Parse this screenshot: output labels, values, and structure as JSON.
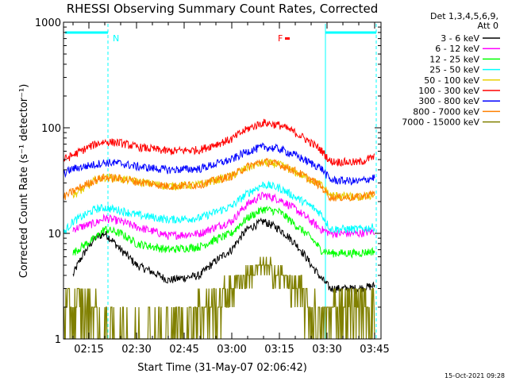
{
  "chart_data": {
    "type": "line",
    "title": "RHESSI Observing Summary Count Rates, Corrected",
    "xlabel": "Start Time (31-May-07 02:06:42)",
    "ylabel": "Corrected Count Rate (s⁻¹ detector⁻¹)",
    "yscale": "log",
    "ylim": [
      1,
      1000
    ],
    "xlim_minutes": [
      7,
      107
    ],
    "grid": false,
    "legend_placement": "right",
    "legend_header": [
      "Det 1,3,4,5,6,9,",
      "Att 0"
    ],
    "x_ticks": [
      "02:15",
      "02:30",
      "02:45",
      "03:00",
      "03:15",
      "03:30",
      "03:45"
    ],
    "x_tick_minutes": [
      15,
      30,
      45,
      60,
      75,
      90,
      105
    ],
    "y_ticks": [
      "1",
      "10",
      "100",
      "1000"
    ],
    "y_tick_values": [
      1,
      10,
      100,
      1000
    ],
    "annotations": [
      {
        "text": "N",
        "color": "#00ffff",
        "minute": 21
      },
      {
        "text": "F",
        "color": "#ff0000",
        "minute": 78
      }
    ],
    "footer": "15-Oct-2021 09:28",
    "series": [
      {
        "name": "3 - 6 keV",
        "color": "#000000",
        "x": [
          10,
          17,
          20,
          25,
          30,
          40,
          50,
          60,
          65,
          70,
          75,
          80,
          85,
          88,
          91,
          100,
          105
        ],
        "y": [
          4.0,
          9,
          10,
          7,
          5,
          3.6,
          4.0,
          7,
          11,
          13,
          11,
          8,
          5,
          3.8,
          3.0,
          3.0,
          3.2
        ]
      },
      {
        "name": "6 - 12 keV",
        "color": "#ff00ff",
        "x": [
          10,
          17,
          20,
          25,
          30,
          40,
          50,
          60,
          65,
          70,
          75,
          80,
          85,
          88,
          91,
          100,
          105
        ],
        "y": [
          11,
          12.5,
          14,
          13,
          11.5,
          9.5,
          10,
          13,
          19,
          23,
          21,
          17,
          13,
          11,
          10,
          10,
          10.5
        ]
      },
      {
        "name": "12 - 25 keV",
        "color": "#00ff00",
        "x": [
          10,
          17,
          20,
          25,
          30,
          40,
          50,
          60,
          65,
          70,
          75,
          80,
          85,
          88,
          91,
          100,
          105
        ],
        "y": [
          6.5,
          9,
          11,
          10,
          8,
          7,
          7.5,
          10,
          14,
          17,
          16,
          12,
          9,
          7,
          6.5,
          6.5,
          6.8
        ]
      },
      {
        "name": "25 - 50 keV",
        "color": "#00ffff",
        "x": [
          7,
          10,
          14,
          17,
          20,
          25,
          30,
          40,
          50,
          60,
          65,
          70,
          75,
          80,
          85,
          88,
          91,
          100,
          105
        ],
        "y": [
          10,
          13,
          15,
          17,
          17.5,
          16.5,
          15,
          13.5,
          14,
          18,
          24,
          29,
          27,
          22,
          18,
          15.5,
          11,
          11,
          11.5
        ]
      },
      {
        "name": "50 - 100 keV",
        "color": "#e8d000",
        "x": [
          10,
          14,
          17,
          20,
          25,
          30,
          40,
          50,
          60,
          65,
          70,
          75,
          80,
          85,
          88,
          91,
          100,
          105
        ],
        "y": [
          23,
          27,
          32,
          34,
          33,
          31,
          28,
          29,
          35,
          42,
          47,
          45,
          38,
          32,
          29,
          23,
          22,
          23
        ]
      },
      {
        "name": "100 - 300 keV",
        "color": "#ff0000",
        "x": [
          7,
          10,
          17,
          20,
          25,
          30,
          40,
          50,
          60,
          65,
          70,
          75,
          80,
          85,
          88,
          91,
          100,
          105
        ],
        "y": [
          50,
          55,
          70,
          74,
          72,
          66,
          60,
          62,
          78,
          98,
          112,
          106,
          90,
          72,
          62,
          48,
          47,
          53
        ]
      },
      {
        "name": "300 - 800 keV",
        "color": "#0000ff",
        "x": [
          7,
          10,
          17,
          20,
          25,
          30,
          40,
          50,
          60,
          65,
          70,
          75,
          80,
          85,
          88,
          91,
          100,
          105
        ],
        "y": [
          37,
          41,
          45,
          47,
          46,
          43,
          40,
          41,
          50,
          60,
          66,
          63,
          55,
          46,
          42,
          32,
          31,
          34
        ]
      },
      {
        "name": "800 - 7000 keV",
        "color": "#ff8000",
        "x": [
          7,
          10,
          17,
          20,
          25,
          30,
          40,
          50,
          60,
          65,
          70,
          75,
          80,
          85,
          88,
          91,
          100,
          105
        ],
        "y": [
          22,
          25,
          32,
          34,
          33,
          31,
          28,
          29,
          35,
          43,
          48,
          45,
          39,
          32,
          28,
          22,
          22,
          24
        ]
      },
      {
        "name": "7000 - 15000 keV",
        "color": "#808000",
        "x": [
          7,
          17,
          18,
          45,
          50,
          55,
          60,
          65,
          70,
          75,
          80,
          85,
          88,
          91,
          105
        ],
        "y": [
          2.0,
          2.0,
          1.0,
          1.0,
          2.0,
          2.0,
          3.0,
          4.0,
          5.0,
          4.0,
          3.0,
          2.0,
          1.0,
          2.0,
          2.0
        ]
      }
    ]
  }
}
